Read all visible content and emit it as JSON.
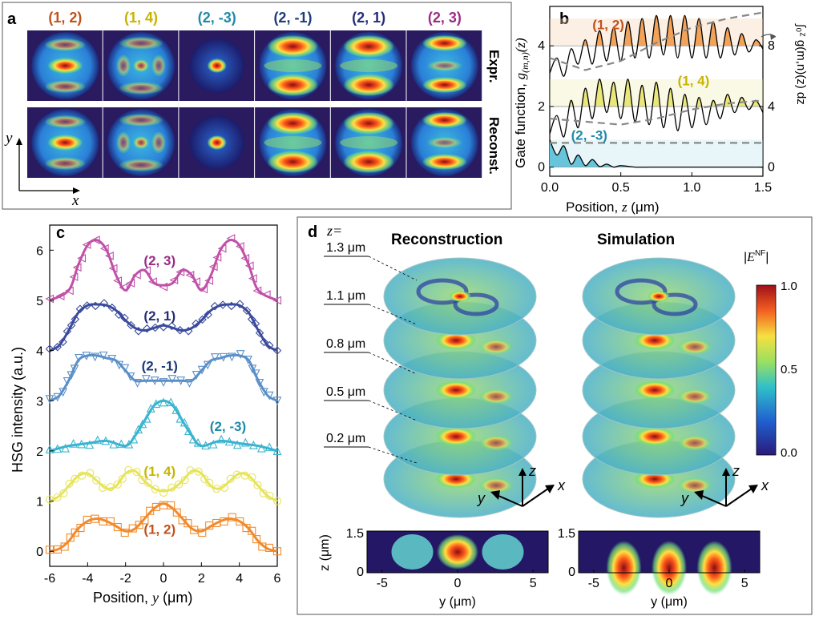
{
  "colors": {
    "c12": "#f28a2c",
    "c14": "#e6e45a",
    "c2m3": "#38b4d0",
    "c2m1": "#5a8fc8",
    "c21": "#3a4a9c",
    "c23": "#c050a8",
    "label12": "#c0521c",
    "label14": "#c8b400",
    "label2m3": "#1e8aa8",
    "label2m1": "#1e3c7a",
    "label21": "#262c78",
    "label23": "#9a2c86",
    "jet_low": "#2a1a60",
    "jet_high": "#8c0c14"
  },
  "panel_a": {
    "letter": "a",
    "modes": [
      "(1, 2)",
      "(1, 4)",
      "(2, -3)",
      "(2, -1)",
      "(2, 1)",
      "(2, 3)"
    ],
    "row_labels": [
      "Expr.",
      "Reconst."
    ],
    "axis_y": "y",
    "axis_x": "x"
  },
  "panel_b": {
    "letter": "b",
    "ylabel_left_prefix": "Gate function, ",
    "ylabel_left_sym": "g",
    "ylabel_left_sub": "(m,n)",
    "ylabel_left_arg": "(z)",
    "ylabel_right": "∫₀ᶻ g(m,n)(z) dz",
    "xlabel_prefix": "Position, ",
    "xlabel_sym": "z",
    "xlabel_unit": " (μm)",
    "x_ticks": [
      "0.0",
      "0.5",
      "1.0",
      "1.5"
    ],
    "y_ticks": [
      "0",
      "2",
      "4"
    ],
    "y_ticks_right": [
      "0",
      "4",
      "8"
    ],
    "labels": [
      "(1, 2)",
      "(1, 4)",
      "(2, -3)"
    ]
  },
  "panel_c": {
    "letter": "c",
    "xlabel_prefix": "Position, ",
    "xlabel_sym": "y",
    "xlabel_unit": " (μm)",
    "ylabel": "HSG intensity (a.u.)",
    "x_ticks": [
      "-6",
      "-4",
      "-2",
      "0",
      "2",
      "4",
      "6"
    ],
    "y_ticks": [
      "0",
      "1",
      "2",
      "3",
      "4",
      "5",
      "6"
    ],
    "labels": [
      "(2, 3)",
      "(2, 1)",
      "(2, -1)",
      "(2, -3)",
      "(1, 4)",
      "(1, 2)"
    ]
  },
  "panel_d": {
    "letter": "d",
    "z_eq": "z=",
    "titles": [
      "Reconstruction",
      "Simulation"
    ],
    "slices": [
      "1.3 μm",
      "1.1 μm",
      "0.8 μm",
      "0.5 μm",
      "0.2 μm"
    ],
    "colorbar_title": "|E^NF|",
    "colorbar_ticks": [
      "1.0",
      "0.5",
      "0.0"
    ],
    "axes": [
      "z",
      "y",
      "x"
    ],
    "bottom_x_ticks": [
      "-5",
      "0",
      "5"
    ],
    "bottom_y_ticks": [
      "1.5",
      "0"
    ],
    "bottom_xlabel": "y (μm)",
    "bottom_ylabel": "z (μm)"
  },
  "chart_data": [
    {
      "panel": "b",
      "type": "line",
      "xlabel": "Position, z (μm)",
      "ylabel": "Gate function, g(m,n)(z)",
      "xlim": [
        0,
        1.5
      ],
      "ylim": [
        -0.3,
        5.3
      ],
      "series": [
        {
          "name": "(1, 2)",
          "offset": 4,
          "x": [
            0,
            0.05,
            0.1,
            0.15,
            0.2,
            0.25,
            0.3,
            0.35,
            0.4,
            0.45,
            0.5,
            0.55,
            0.6,
            0.65,
            0.7,
            0.75,
            0.8,
            0.85,
            0.9,
            0.95,
            1.0,
            1.05,
            1.1,
            1.15,
            1.2,
            1.25,
            1.3,
            1.35,
            1.4,
            1.45,
            1.5
          ],
          "y": [
            3.1,
            3.6,
            3.0,
            3.9,
            3.4,
            4.2,
            3.4,
            4.5,
            3.5,
            4.6,
            3.5,
            4.8,
            3.6,
            4.9,
            3.6,
            5.0,
            3.7,
            5.0,
            3.6,
            5.0,
            3.6,
            4.9,
            3.6,
            4.8,
            3.6,
            4.6,
            3.7,
            4.4,
            3.8,
            4.2,
            3.9
          ]
        },
        {
          "name": "(1, 4)",
          "offset": 2,
          "x": [
            0,
            0.05,
            0.1,
            0.15,
            0.2,
            0.25,
            0.3,
            0.35,
            0.4,
            0.45,
            0.5,
            0.55,
            0.6,
            0.65,
            0.7,
            0.75,
            0.8,
            0.85,
            0.9,
            0.95,
            1.0,
            1.05,
            1.1,
            1.15,
            1.2,
            1.25,
            1.3,
            1.35,
            1.4,
            1.45,
            1.5
          ],
          "y": [
            1.1,
            1.7,
            1.0,
            2.2,
            1.3,
            2.6,
            1.6,
            2.9,
            1.8,
            2.8,
            1.6,
            2.9,
            1.5,
            2.7,
            1.4,
            2.8,
            1.3,
            2.6,
            1.2,
            2.4,
            1.3,
            2.3,
            1.4,
            2.2,
            1.6,
            2.4,
            1.8,
            2.3,
            1.9,
            2.2,
            1.8
          ]
        },
        {
          "name": "(2, -3)",
          "offset": 0,
          "x": [
            0,
            0.05,
            0.1,
            0.15,
            0.2,
            0.25,
            0.3,
            0.35,
            0.4,
            0.45,
            0.5,
            0.6,
            0.7,
            0.8,
            0.9,
            1.0,
            1.1,
            1.2,
            1.3,
            1.4,
            1.5
          ],
          "y": [
            0.9,
            0.4,
            0.7,
            0.1,
            0.4,
            0.05,
            0.25,
            0.02,
            0.1,
            0.0,
            0.05,
            0.0,
            0.0,
            0.0,
            0.0,
            0.0,
            0.0,
            0.0,
            0.0,
            0.0,
            0.0
          ]
        }
      ],
      "integral_series": [
        {
          "name": "(1, 2)",
          "x": [
            0,
            0.25,
            0.5,
            0.75,
            1.0,
            1.25,
            1.5
          ],
          "y": [
            3.6,
            3.2,
            3.5,
            4.1,
            4.6,
            4.9,
            5.1
          ]
        },
        {
          "name": "(1, 4)",
          "x": [
            0,
            0.25,
            0.5,
            0.75,
            1.0,
            1.25,
            1.5
          ],
          "y": [
            1.6,
            1.5,
            1.4,
            1.6,
            1.9,
            2.1,
            2.2
          ]
        },
        {
          "name": "(2, -3)",
          "x": [
            0,
            0.25,
            0.5,
            0.75,
            1.0,
            1.25,
            1.5
          ],
          "y": [
            0.8,
            0.8,
            0.8,
            0.8,
            0.8,
            0.8,
            0.8
          ]
        }
      ]
    },
    {
      "panel": "c",
      "type": "line",
      "xlabel": "Position, y (μm)",
      "ylabel": "HSG intensity (a.u.)",
      "xlim": [
        -6,
        6
      ],
      "ylim": [
        -0.3,
        6.5
      ],
      "series": [
        {
          "name": "(2, 3)",
          "x": [
            -6,
            -5,
            -4.5,
            -4,
            -3.5,
            -3,
            -2.5,
            -2,
            -1.5,
            -1,
            -0.5,
            0,
            0.5,
            1,
            1.5,
            2,
            2.5,
            3,
            3.5,
            4,
            4.5,
            5,
            6
          ],
          "y": [
            5.0,
            5.2,
            5.7,
            6.1,
            6.2,
            6.0,
            5.5,
            5.2,
            5.5,
            5.6,
            5.35,
            5.3,
            5.35,
            5.6,
            5.5,
            5.2,
            5.5,
            6.0,
            6.2,
            6.1,
            5.7,
            5.2,
            5.0
          ]
        },
        {
          "name": "(2, 1)",
          "x": [
            -6,
            -5.5,
            -5,
            -4.5,
            -4,
            -3.5,
            -3,
            -2.5,
            -2,
            -1.5,
            -1,
            -0.5,
            0,
            0.5,
            1,
            1.5,
            2,
            2.5,
            3,
            3.5,
            4,
            4.5,
            5,
            5.5,
            6
          ],
          "y": [
            4.0,
            4.1,
            4.4,
            4.75,
            4.9,
            4.92,
            4.9,
            4.8,
            4.6,
            4.45,
            4.4,
            4.45,
            4.5,
            4.45,
            4.4,
            4.45,
            4.6,
            4.8,
            4.9,
            4.92,
            4.9,
            4.75,
            4.4,
            4.1,
            4.0
          ]
        },
        {
          "name": "(2, -1)",
          "x": [
            -6,
            -5.5,
            -5,
            -4.5,
            -4,
            -3.5,
            -3,
            -2.5,
            -2,
            -1.5,
            -1,
            -0.5,
            0,
            0.5,
            1,
            1.5,
            2,
            2.5,
            3,
            3.5,
            4,
            4.5,
            5,
            5.5,
            6
          ],
          "y": [
            3.0,
            3.1,
            3.4,
            3.8,
            3.9,
            3.9,
            3.85,
            3.8,
            3.6,
            3.4,
            3.4,
            3.4,
            3.4,
            3.4,
            3.4,
            3.4,
            3.6,
            3.8,
            3.85,
            3.9,
            3.9,
            3.8,
            3.4,
            3.1,
            3.0
          ]
        },
        {
          "name": "(2, -3)",
          "x": [
            -6,
            -5,
            -4,
            -3,
            -2,
            -1.5,
            -1,
            -0.5,
            0,
            0.5,
            1,
            1.5,
            2,
            3,
            4,
            5,
            6
          ],
          "y": [
            2.0,
            2.1,
            2.15,
            2.2,
            2.1,
            2.3,
            2.6,
            2.9,
            3.0,
            2.9,
            2.6,
            2.3,
            2.1,
            2.2,
            2.15,
            2.1,
            2.0
          ]
        },
        {
          "name": "(1, 4)",
          "x": [
            -6,
            -5.5,
            -5,
            -4.5,
            -4,
            -3.5,
            -3,
            -2.5,
            -2,
            -1.5,
            -1,
            -0.5,
            0,
            0.5,
            1,
            1.5,
            2,
            2.5,
            3,
            3.5,
            4,
            4.5,
            5,
            5.5,
            6
          ],
          "y": [
            1.0,
            1.1,
            1.3,
            1.5,
            1.55,
            1.4,
            1.25,
            1.3,
            1.55,
            1.6,
            1.4,
            1.25,
            1.2,
            1.25,
            1.4,
            1.6,
            1.55,
            1.3,
            1.25,
            1.4,
            1.55,
            1.5,
            1.3,
            1.1,
            1.0
          ]
        },
        {
          "name": "(1, 2)",
          "x": [
            -6,
            -5.5,
            -5,
            -4.5,
            -4,
            -3.5,
            -3,
            -2.5,
            -2,
            -1.5,
            -1,
            -0.5,
            0,
            0.5,
            1,
            1.5,
            2,
            2.5,
            3,
            3.5,
            4,
            4.5,
            5,
            5.5,
            6
          ],
          "y": [
            0.0,
            0.05,
            0.2,
            0.45,
            0.6,
            0.65,
            0.6,
            0.5,
            0.4,
            0.45,
            0.65,
            0.85,
            0.95,
            0.85,
            0.65,
            0.45,
            0.4,
            0.5,
            0.6,
            0.65,
            0.6,
            0.45,
            0.2,
            0.05,
            0.0
          ]
        }
      ]
    },
    {
      "panel": "d",
      "type": "heatmap",
      "titles": [
        "Reconstruction",
        "Simulation"
      ],
      "slices_um": [
        1.3,
        1.1,
        0.8,
        0.5,
        0.2
      ],
      "colorbar_range": [
        0.0,
        1.0
      ],
      "bottom_xlim": [
        -6,
        6
      ],
      "bottom_ylim": [
        0,
        1.5
      ]
    }
  ]
}
